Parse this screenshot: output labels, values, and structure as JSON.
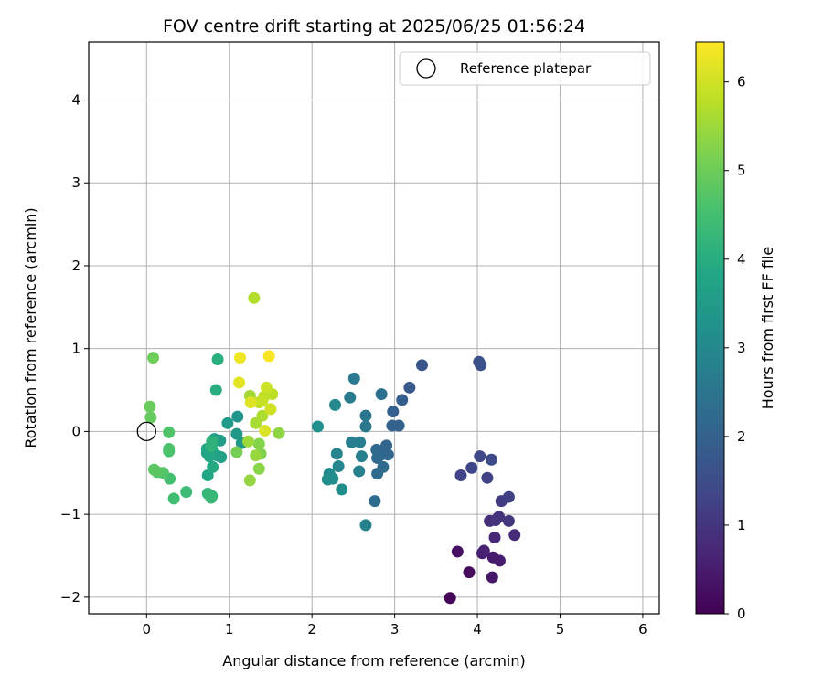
{
  "chart_data": {
    "type": "scatter",
    "title": "FOV centre drift starting at 2025/06/25 01:56:24",
    "xlabel": "Angular distance from reference (arcmin)",
    "ylabel": "Rotation from reference (arcmin)",
    "xlim": [
      -0.7,
      6.2
    ],
    "ylim": [
      -2.2,
      4.7
    ],
    "xticks": [
      0,
      1,
      2,
      3,
      4,
      5,
      6
    ],
    "yticks": [
      -2,
      -1,
      0,
      1,
      2,
      3,
      4
    ],
    "grid": true,
    "legend": {
      "position": "top-right",
      "entries": [
        "Reference platepar"
      ]
    },
    "colormap": "viridis",
    "colorbar": {
      "label": "Hours from first FF file",
      "range": [
        0,
        6.45
      ],
      "ticks": [
        0,
        1,
        2,
        3,
        4,
        5,
        6
      ]
    },
    "reference_point": {
      "x": 0,
      "y": 0
    },
    "points": [
      {
        "x": 3.67,
        "y": -2.01,
        "t": 0.05
      },
      {
        "x": 3.9,
        "y": -1.7,
        "t": 0.2
      },
      {
        "x": 3.76,
        "y": -1.45,
        "t": 0.3
      },
      {
        "x": 4.18,
        "y": -1.76,
        "t": 0.4
      },
      {
        "x": 4.19,
        "y": -1.52,
        "t": 0.45
      },
      {
        "x": 4.27,
        "y": -1.56,
        "t": 0.5
      },
      {
        "x": 4.06,
        "y": -1.47,
        "t": 0.55
      },
      {
        "x": 4.08,
        "y": -1.44,
        "t": 0.6
      },
      {
        "x": 4.21,
        "y": -1.28,
        "t": 0.7
      },
      {
        "x": 4.45,
        "y": -1.25,
        "t": 0.8
      },
      {
        "x": 4.15,
        "y": -1.08,
        "t": 0.85
      },
      {
        "x": 4.26,
        "y": -1.03,
        "t": 0.9
      },
      {
        "x": 4.22,
        "y": -1.07,
        "t": 0.95
      },
      {
        "x": 4.38,
        "y": -1.08,
        "t": 1.0
      },
      {
        "x": 4.29,
        "y": -0.84,
        "t": 1.1
      },
      {
        "x": 4.38,
        "y": -0.79,
        "t": 1.2
      },
      {
        "x": 4.12,
        "y": -0.56,
        "t": 1.25
      },
      {
        "x": 3.8,
        "y": -0.53,
        "t": 1.3
      },
      {
        "x": 3.93,
        "y": -0.44,
        "t": 1.35
      },
      {
        "x": 4.03,
        "y": -0.3,
        "t": 1.4
      },
      {
        "x": 4.17,
        "y": -0.34,
        "t": 1.45
      },
      {
        "x": 4.02,
        "y": 0.84,
        "t": 1.55
      },
      {
        "x": 4.04,
        "y": 0.8,
        "t": 1.6
      },
      {
        "x": 3.33,
        "y": 0.8,
        "t": 1.7
      },
      {
        "x": 3.18,
        "y": 0.53,
        "t": 1.8
      },
      {
        "x": 3.09,
        "y": 0.38,
        "t": 1.9
      },
      {
        "x": 2.98,
        "y": 0.24,
        "t": 1.95
      },
      {
        "x": 2.97,
        "y": 0.07,
        "t": 2.0
      },
      {
        "x": 3.05,
        "y": 0.07,
        "t": 2.05
      },
      {
        "x": 2.9,
        "y": -0.17,
        "t": 2.1
      },
      {
        "x": 2.92,
        "y": -0.28,
        "t": 2.12
      },
      {
        "x": 2.84,
        "y": -0.28,
        "t": 2.15
      },
      {
        "x": 2.78,
        "y": -0.22,
        "t": 2.18
      },
      {
        "x": 2.79,
        "y": -0.32,
        "t": 2.2
      },
      {
        "x": 2.86,
        "y": -0.43,
        "t": 2.22
      },
      {
        "x": 2.79,
        "y": -0.51,
        "t": 2.25
      },
      {
        "x": 2.76,
        "y": -0.84,
        "t": 2.3
      },
      {
        "x": 2.84,
        "y": 0.45,
        "t": 2.4
      },
      {
        "x": 2.65,
        "y": 0.19,
        "t": 2.5
      },
      {
        "x": 2.65,
        "y": 0.06,
        "t": 2.55
      },
      {
        "x": 2.51,
        "y": 0.64,
        "t": 2.6
      },
      {
        "x": 2.46,
        "y": 0.41,
        "t": 2.65
      },
      {
        "x": 2.48,
        "y": -0.13,
        "t": 2.7
      },
      {
        "x": 2.58,
        "y": -0.13,
        "t": 2.72
      },
      {
        "x": 2.6,
        "y": -0.3,
        "t": 2.75
      },
      {
        "x": 2.57,
        "y": -0.48,
        "t": 2.8
      },
      {
        "x": 2.65,
        "y": -1.13,
        "t": 2.85
      },
      {
        "x": 2.3,
        "y": -0.27,
        "t": 2.9
      },
      {
        "x": 2.32,
        "y": -0.42,
        "t": 2.95
      },
      {
        "x": 2.28,
        "y": 0.32,
        "t": 3.0
      },
      {
        "x": 2.21,
        "y": -0.51,
        "t": 3.05
      },
      {
        "x": 2.19,
        "y": -0.58,
        "t": 3.1
      },
      {
        "x": 2.25,
        "y": -0.57,
        "t": 3.12
      },
      {
        "x": 2.36,
        "y": -0.7,
        "t": 3.15
      },
      {
        "x": 2.07,
        "y": 0.06,
        "t": 3.2
      },
      {
        "x": 1.1,
        "y": 0.18,
        "t": 3.3
      },
      {
        "x": 1.09,
        "y": -0.03,
        "t": 3.4
      },
      {
        "x": 1.15,
        "y": -0.14,
        "t": 3.45
      },
      {
        "x": 0.98,
        "y": 0.1,
        "t": 3.5
      },
      {
        "x": 0.89,
        "y": -0.11,
        "t": 3.55
      },
      {
        "x": 0.82,
        "y": -0.09,
        "t": 3.6
      },
      {
        "x": 0.9,
        "y": -0.31,
        "t": 3.65
      },
      {
        "x": 0.85,
        "y": -0.29,
        "t": 3.7
      },
      {
        "x": 0.79,
        "y": -0.21,
        "t": 3.72
      },
      {
        "x": 0.73,
        "y": -0.21,
        "t": 3.75
      },
      {
        "x": 0.73,
        "y": -0.26,
        "t": 3.78
      },
      {
        "x": 0.76,
        "y": -0.3,
        "t": 3.8
      },
      {
        "x": 0.74,
        "y": -0.53,
        "t": 3.85
      },
      {
        "x": 0.8,
        "y": -0.43,
        "t": 3.9
      },
      {
        "x": 0.84,
        "y": 0.5,
        "t": 4.0
      },
      {
        "x": 0.86,
        "y": 0.87,
        "t": 4.05
      },
      {
        "x": 0.79,
        "y": -0.12,
        "t": 4.1
      },
      {
        "x": 0.78,
        "y": -0.18,
        "t": 4.15
      },
      {
        "x": 0.79,
        "y": -0.78,
        "t": 4.2
      },
      {
        "x": 0.74,
        "y": -0.75,
        "t": 4.25
      },
      {
        "x": 0.78,
        "y": -0.8,
        "t": 4.3
      },
      {
        "x": 0.48,
        "y": -0.73,
        "t": 4.4
      },
      {
        "x": 0.33,
        "y": -0.81,
        "t": 4.45
      },
      {
        "x": 0.28,
        "y": -0.57,
        "t": 4.5
      },
      {
        "x": 0.27,
        "y": -0.24,
        "t": 4.55
      },
      {
        "x": 0.27,
        "y": -0.21,
        "t": 4.6
      },
      {
        "x": 0.27,
        "y": -0.01,
        "t": 4.65
      },
      {
        "x": 0.2,
        "y": -0.5,
        "t": 4.7
      },
      {
        "x": 0.13,
        "y": -0.49,
        "t": 4.75
      },
      {
        "x": 0.09,
        "y": -0.46,
        "t": 4.8
      },
      {
        "x": 0.05,
        "y": 0.17,
        "t": 4.9
      },
      {
        "x": 0.04,
        "y": 0.3,
        "t": 4.95
      },
      {
        "x": 0.08,
        "y": 0.89,
        "t": 5.0
      },
      {
        "x": 1.09,
        "y": -0.25,
        "t": 5.1
      },
      {
        "x": 1.38,
        "y": -0.27,
        "t": 5.2
      },
      {
        "x": 1.36,
        "y": -0.15,
        "t": 5.25
      },
      {
        "x": 1.36,
        "y": -0.45,
        "t": 5.3
      },
      {
        "x": 1.6,
        "y": -0.02,
        "t": 5.35
      },
      {
        "x": 1.25,
        "y": -0.59,
        "t": 5.4
      },
      {
        "x": 1.32,
        "y": -0.29,
        "t": 5.45
      },
      {
        "x": 1.23,
        "y": -0.12,
        "t": 5.5
      },
      {
        "x": 1.25,
        "y": 0.43,
        "t": 5.55
      },
      {
        "x": 1.32,
        "y": 0.1,
        "t": 5.6
      },
      {
        "x": 1.4,
        "y": 0.19,
        "t": 5.65
      },
      {
        "x": 1.3,
        "y": 1.61,
        "t": 5.7
      },
      {
        "x": 1.42,
        "y": 0.42,
        "t": 5.75
      },
      {
        "x": 1.52,
        "y": 0.45,
        "t": 5.8
      },
      {
        "x": 1.36,
        "y": 0.35,
        "t": 5.85
      },
      {
        "x": 1.4,
        "y": 0.37,
        "t": 5.9
      },
      {
        "x": 1.45,
        "y": 0.53,
        "t": 5.95
      },
      {
        "x": 1.5,
        "y": 0.27,
        "t": 6.0
      },
      {
        "x": 1.43,
        "y": 0.01,
        "t": 6.1
      },
      {
        "x": 1.26,
        "y": 0.35,
        "t": 6.15
      },
      {
        "x": 1.12,
        "y": 0.59,
        "t": 6.2
      },
      {
        "x": 1.13,
        "y": 0.89,
        "t": 6.3
      },
      {
        "x": 1.48,
        "y": 0.91,
        "t": 6.4
      }
    ]
  }
}
